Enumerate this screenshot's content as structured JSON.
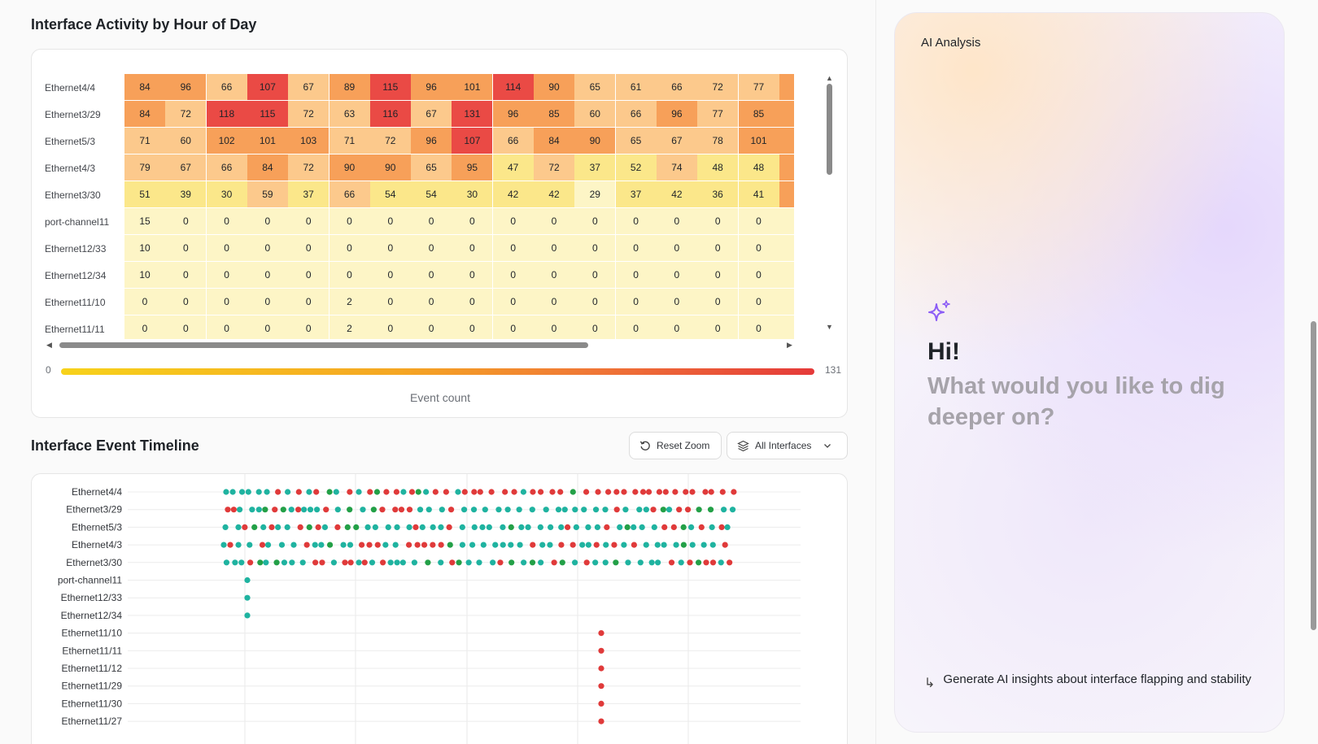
{
  "heatmap": {
    "title": "Interface Activity by Hour of Day",
    "rows": [
      {
        "label": "Ethernet4/4",
        "values": [
          84,
          96,
          66,
          107,
          67,
          89,
          115,
          96,
          101,
          114,
          90,
          65,
          61,
          66,
          72,
          77
        ]
      },
      {
        "label": "Ethernet3/29",
        "values": [
          84,
          72,
          118,
          115,
          72,
          63,
          116,
          67,
          131,
          96,
          85,
          60,
          66,
          96,
          77,
          85
        ]
      },
      {
        "label": "Ethernet5/3",
        "values": [
          71,
          60,
          102,
          101,
          103,
          71,
          72,
          96,
          107,
          66,
          84,
          90,
          65,
          67,
          78,
          101
        ]
      },
      {
        "label": "Ethernet4/3",
        "values": [
          79,
          67,
          66,
          84,
          72,
          90,
          90,
          65,
          95,
          47,
          72,
          37,
          52,
          74,
          48,
          48
        ]
      },
      {
        "label": "Ethernet3/30",
        "values": [
          51,
          39,
          30,
          59,
          37,
          66,
          54,
          54,
          30,
          42,
          42,
          29,
          37,
          42,
          36,
          41
        ]
      },
      {
        "label": "port-channel11",
        "values": [
          15,
          0,
          0,
          0,
          0,
          0,
          0,
          0,
          0,
          0,
          0,
          0,
          0,
          0,
          0,
          0
        ]
      },
      {
        "label": "Ethernet12/33",
        "values": [
          10,
          0,
          0,
          0,
          0,
          0,
          0,
          0,
          0,
          0,
          0,
          0,
          0,
          0,
          0,
          0
        ]
      },
      {
        "label": "Ethernet12/34",
        "values": [
          10,
          0,
          0,
          0,
          0,
          0,
          0,
          0,
          0,
          0,
          0,
          0,
          0,
          0,
          0,
          0
        ]
      },
      {
        "label": "Ethernet11/10",
        "values": [
          0,
          0,
          0,
          0,
          0,
          2,
          0,
          0,
          0,
          0,
          0,
          0,
          0,
          0,
          0,
          0
        ]
      },
      {
        "label": "Ethernet11/11",
        "values": [
          0,
          0,
          0,
          0,
          0,
          2,
          0,
          0,
          0,
          0,
          0,
          0,
          0,
          0,
          0,
          0
        ]
      }
    ],
    "legend_min": "0",
    "legend_max": "131",
    "legend_caption": "Event count",
    "colors": {
      "low": "#fdf5c6",
      "mid_low": "#fbe78a",
      "mid": "#fcc98c",
      "high": "#f7a059",
      "peak": "#ea4a45"
    }
  },
  "timeline": {
    "title": "Interface Event Timeline",
    "reset_zoom_label": "Reset Zoom",
    "filter_label": "All Interfaces",
    "rows": [
      "Ethernet4/4",
      "Ethernet3/29",
      "Ethernet5/3",
      "Ethernet4/3",
      "Ethernet3/30",
      "port-channel11",
      "Ethernet12/33",
      "Ethernet12/34",
      "Ethernet11/10",
      "Ethernet11/11",
      "Ethernet11/12",
      "Ethernet11/29",
      "Ethernet11/30",
      "Ethernet11/27"
    ],
    "colors": {
      "teal": "#1fb3a0",
      "green": "#23a047",
      "red": "#e03a3a"
    }
  },
  "ai": {
    "title": "AI Analysis",
    "greeting": "Hi!",
    "question": "What would you like to dig deeper on?",
    "suggestion": "Generate AI insights about interface flapping and stability",
    "accent": "#8b5cf6"
  }
}
